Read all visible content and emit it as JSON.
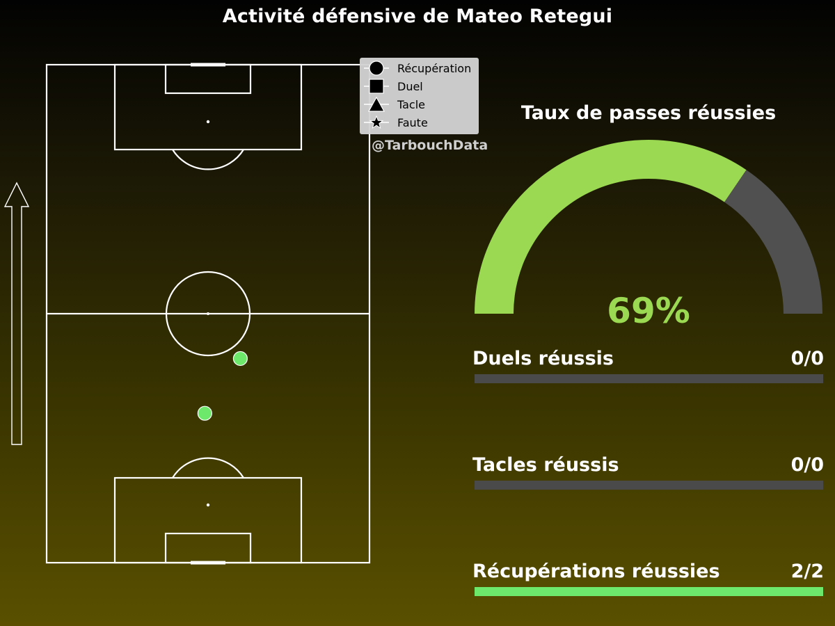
{
  "title": "Activité défensive de Mateo Retegui",
  "credit": "@TarbouchData",
  "legend": {
    "items": [
      {
        "label": "Récupération",
        "icon": "circle-marker-icon"
      },
      {
        "label": "Duel",
        "icon": "square-marker-icon"
      },
      {
        "label": "Tacle",
        "icon": "triangle-marker-icon"
      },
      {
        "label": "Faute",
        "icon": "star-marker-icon"
      }
    ]
  },
  "colors": {
    "gauge_fill": "#9ad951",
    "gauge_track": "#505050",
    "stat_fill": "#6ee86b",
    "bar_track": "#4a4a4a",
    "event_marker": "#6ee86b"
  },
  "chart_data": [
    {
      "type": "scatter",
      "description_axes": "pitch coordinates 0-100 (x: across, y: along attacking direction)",
      "arrow_icon": "attack-direction-arrow-icon",
      "series": [
        {
          "name": "Récupération",
          "points": [
            {
              "x": 60,
              "y": 41
            },
            {
              "x": 49,
              "y": 30
            }
          ]
        }
      ]
    },
    {
      "type": "gauge",
      "title": "Taux de passes réussies",
      "value": 69,
      "max": 100,
      "value_label": "69%"
    },
    {
      "type": "bar",
      "stats": [
        {
          "label": "Duels réussis",
          "success": 0,
          "total": 0,
          "value_label": "0/0"
        },
        {
          "label": "Tacles réussis",
          "success": 0,
          "total": 0,
          "value_label": "0/0"
        },
        {
          "label": "Récupérations réussies",
          "success": 2,
          "total": 2,
          "value_label": "2/2"
        }
      ]
    }
  ]
}
